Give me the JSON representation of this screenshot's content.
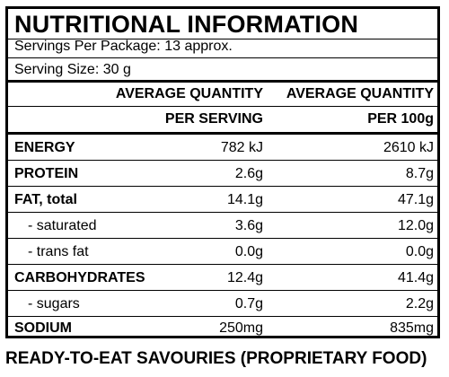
{
  "panel": {
    "title": "NUTRITIONAL INFORMATION",
    "servings_per_package": "Servings Per Package: 13 approx.",
    "serving_size": "Serving Size: 30 g"
  },
  "columns": {
    "col1_line1": "AVERAGE QUANTITY",
    "col1_line2": "PER SERVING",
    "col2_line1": "AVERAGE QUANTITY",
    "col2_line2": "PER 100g"
  },
  "rows": [
    {
      "label": "ENERGY",
      "per_serving": "782 kJ",
      "per_100g": "2610 kJ"
    },
    {
      "label": "PROTEIN",
      "per_serving": "2.6g",
      "per_100g": "8.7g"
    },
    {
      "label": "FAT, total",
      "per_serving": "14.1g",
      "per_100g": "47.1g"
    },
    {
      "label": "- saturated",
      "per_serving": "3.6g",
      "per_100g": "12.0g"
    },
    {
      "label": "- trans fat",
      "per_serving": "0.0g",
      "per_100g": "0.0g"
    },
    {
      "label": "CARBOHYDRATES",
      "per_serving": "12.4g",
      "per_100g": "41.4g"
    },
    {
      "label": "- sugars",
      "per_serving": "0.7g",
      "per_100g": "2.2g"
    },
    {
      "label": "SODIUM",
      "per_serving": "250mg",
      "per_100g": "835mg"
    }
  ],
  "footer": "READY-TO-EAT SAVOURIES (PROPRIETARY FOOD)"
}
